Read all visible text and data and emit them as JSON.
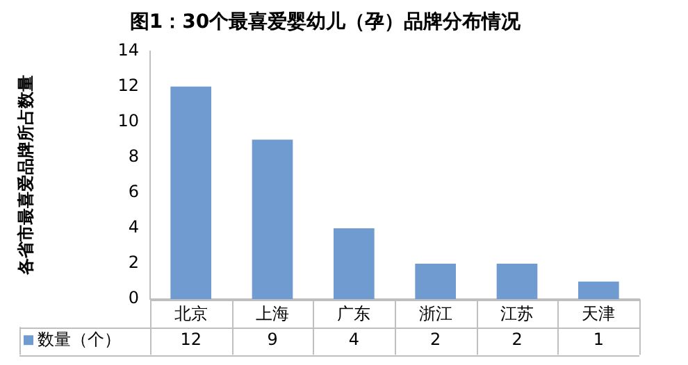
{
  "chart_data": {
    "type": "bar",
    "title": "图1：30个最喜爱婴幼儿（孕）品牌分布情况",
    "ylabel": "各省市最喜爱品牌所占数量",
    "categories": [
      "北京",
      "上海",
      "广东",
      "浙江",
      "江苏",
      "天津"
    ],
    "series": [
      {
        "name": "数量（个）",
        "color": "#6f9bd1",
        "values": [
          12,
          9,
          4,
          2,
          2,
          1
        ]
      }
    ],
    "ylim": [
      0,
      14
    ],
    "yticks": [
      0,
      2,
      4,
      6,
      8,
      10,
      12,
      14
    ],
    "grid": false,
    "legend": "bottom",
    "data_labels": true
  }
}
